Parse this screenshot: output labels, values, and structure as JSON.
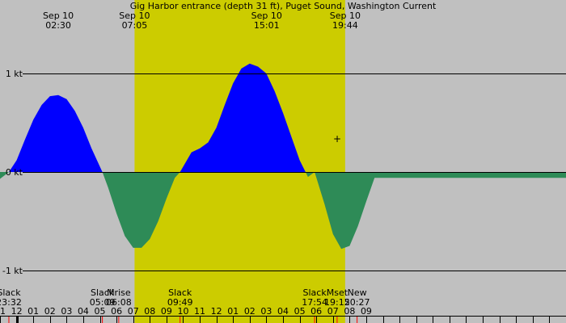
{
  "colors": {
    "night": "#c0c0c0",
    "daylight": "#cccc00",
    "flood": "#0000ff",
    "ebb": "#2e8b57",
    "axis": "#000000",
    "event_tick": "#ff0000"
  },
  "chart_data": {
    "type": "area",
    "title": "Gig Harbor entrance (depth 31 ft), Puget Sound, Washington Current",
    "x_unit": "hour of day (relative to Sep 10 00:00)",
    "y_unit": "kt",
    "xlim": [
      -1.0,
      33.0
    ],
    "ylim": [
      -1.0,
      1.0
    ],
    "y_ticks": [
      {
        "value": 1,
        "label": "1 kt"
      },
      {
        "value": 0,
        "label": "0 kt"
      },
      {
        "value": -1,
        "label": "-1 kt"
      }
    ],
    "x_ticks": [
      {
        "hour": -1,
        "label": "11"
      },
      {
        "hour": 0,
        "label": "12"
      },
      {
        "hour": 1,
        "label": "01"
      },
      {
        "hour": 2,
        "label": "02"
      },
      {
        "hour": 3,
        "label": "03"
      },
      {
        "hour": 4,
        "label": "04"
      },
      {
        "hour": 5,
        "label": "05"
      },
      {
        "hour": 6,
        "label": "06"
      },
      {
        "hour": 7,
        "label": "07"
      },
      {
        "hour": 8,
        "label": "08"
      },
      {
        "hour": 9,
        "label": "09"
      },
      {
        "hour": 10,
        "label": "10"
      },
      {
        "hour": 11,
        "label": "11"
      },
      {
        "hour": 12,
        "label": "12"
      },
      {
        "hour": 13,
        "label": "01"
      },
      {
        "hour": 14,
        "label": "02"
      },
      {
        "hour": 15,
        "label": "03"
      },
      {
        "hour": 16,
        "label": "04"
      },
      {
        "hour": 17,
        "label": "05"
      },
      {
        "hour": 18,
        "label": "06"
      },
      {
        "hour": 19,
        "label": "07"
      },
      {
        "hour": 20,
        "label": "08"
      },
      {
        "hour": 21,
        "label": "09"
      }
    ],
    "daylight": {
      "start": 7.083,
      "end": 19.733
    },
    "top_labels": [
      {
        "hour": 2.5,
        "date": "Sep 10",
        "time": "02:30"
      },
      {
        "hour": 7.083,
        "date": "Sep 10",
        "time": "07:05"
      },
      {
        "hour": 15.017,
        "date": "Sep 10",
        "time": "15:01"
      },
      {
        "hour": 19.733,
        "date": "Sep 10",
        "time": "19:44"
      }
    ],
    "events": [
      {
        "hour": -0.467,
        "name": "Slack",
        "time": "23:32"
      },
      {
        "hour": 5.15,
        "name": "Slack",
        "time": "05:09"
      },
      {
        "hour": 6.133,
        "name": "Mrise",
        "time": "06:08"
      },
      {
        "hour": 9.817,
        "name": "Slack",
        "time": "09:49"
      },
      {
        "hour": 17.9,
        "name": "Slack",
        "time": "17:54"
      },
      {
        "hour": 19.25,
        "name": "Mset",
        "time": "19:15"
      },
      {
        "hour": 20.45,
        "name": "New",
        "time": "20:27"
      }
    ],
    "current_curve": {
      "x": [
        -1.0,
        -0.467,
        0.0,
        0.5,
        1.0,
        1.5,
        2.0,
        2.5,
        3.0,
        3.5,
        4.0,
        4.5,
        5.15,
        5.5,
        6.0,
        6.5,
        7.0,
        7.5,
        8.0,
        8.5,
        9.0,
        9.5,
        9.817,
        10.5,
        11.0,
        11.5,
        12.0,
        12.5,
        13.0,
        13.5,
        14.0,
        14.5,
        15.0,
        15.5,
        16.0,
        16.5,
        17.0,
        17.5,
        17.9,
        18.5,
        19.0,
        19.5,
        20.0,
        20.5,
        21.0,
        21.5
      ],
      "y": [
        -0.07,
        0.0,
        0.12,
        0.33,
        0.53,
        0.68,
        0.77,
        0.78,
        0.74,
        0.62,
        0.45,
        0.24,
        0.0,
        -0.16,
        -0.42,
        -0.65,
        -0.77,
        -0.77,
        -0.68,
        -0.5,
        -0.27,
        -0.06,
        0.0,
        0.2,
        0.24,
        0.3,
        0.45,
        0.68,
        0.9,
        1.05,
        1.1,
        1.07,
        1.0,
        0.82,
        0.6,
        0.36,
        0.12,
        -0.05,
        0.0,
        -0.33,
        -0.63,
        -0.78,
        -0.75,
        -0.55,
        -0.3,
        -0.06
      ]
    }
  }
}
